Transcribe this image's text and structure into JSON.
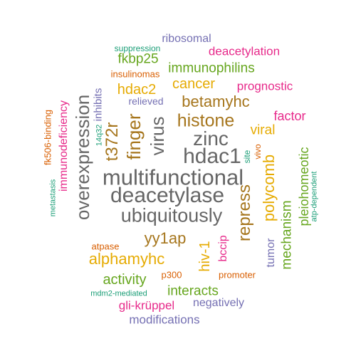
{
  "palette": {
    "green": "#1b9e77",
    "orange": "#d95f02",
    "purple": "#7570b3",
    "magenta": "#e7298a",
    "lime": "#66a61e",
    "gold": "#e6ab02",
    "brown": "#a6761d",
    "gray": "#666666"
  },
  "words": [
    {
      "text": "multifunctional",
      "color": "#666666"
    },
    {
      "text": "deacetylase",
      "color": "#666666"
    },
    {
      "text": "ubiquitously",
      "color": "#666666"
    },
    {
      "text": "overexpression",
      "color": "#666666"
    },
    {
      "text": "hdac1",
      "color": "#666666"
    },
    {
      "text": "zinc",
      "color": "#666666"
    },
    {
      "text": "virus",
      "color": "#666666"
    },
    {
      "text": "histone",
      "color": "#a6761d"
    },
    {
      "text": "finger",
      "color": "#a6761d"
    },
    {
      "text": "t372r",
      "color": "#a6761d"
    },
    {
      "text": "repress",
      "color": "#a6761d"
    },
    {
      "text": "yy1ap",
      "color": "#a6761d"
    },
    {
      "text": "betamyhc",
      "color": "#a6761d"
    },
    {
      "text": "polycomb",
      "color": "#e6ab02"
    },
    {
      "text": "alphamyhc",
      "color": "#e6ab02"
    },
    {
      "text": "cancer",
      "color": "#e6ab02"
    },
    {
      "text": "hdac2",
      "color": "#e6ab02"
    },
    {
      "text": "viral",
      "color": "#e6ab02"
    },
    {
      "text": "hiv-1",
      "color": "#e6ab02"
    },
    {
      "text": "immunophilins",
      "color": "#66a61e"
    },
    {
      "text": "fkbp25",
      "color": "#66a61e"
    },
    {
      "text": "activity",
      "color": "#66a61e"
    },
    {
      "text": "interacts",
      "color": "#66a61e"
    },
    {
      "text": "mechanism",
      "color": "#66a61e"
    },
    {
      "text": "pleiohomeotic",
      "color": "#66a61e"
    },
    {
      "text": "deacetylation",
      "color": "#e7298a"
    },
    {
      "text": "prognostic",
      "color": "#e7298a"
    },
    {
      "text": "factor",
      "color": "#e7298a"
    },
    {
      "text": "immunodeficiency",
      "color": "#e7298a"
    },
    {
      "text": "gli-krüppel",
      "color": "#e7298a"
    },
    {
      "text": "bccip",
      "color": "#e7298a"
    },
    {
      "text": "ribosomal",
      "color": "#7570b3"
    },
    {
      "text": "inhibits",
      "color": "#7570b3"
    },
    {
      "text": "relieved",
      "color": "#7570b3"
    },
    {
      "text": "tumor",
      "color": "#7570b3"
    },
    {
      "text": "negatively",
      "color": "#7570b3"
    },
    {
      "text": "modifications",
      "color": "#7570b3"
    },
    {
      "text": "insulinomas",
      "color": "#d95f02"
    },
    {
      "text": "fk506-binding",
      "color": "#d95f02"
    },
    {
      "text": "atpase",
      "color": "#d95f02"
    },
    {
      "text": "p300",
      "color": "#d95f02"
    },
    {
      "text": "promoter",
      "color": "#d95f02"
    },
    {
      "text": "vivo",
      "color": "#d95f02"
    },
    {
      "text": "suppression",
      "color": "#1b9e77"
    },
    {
      "text": "14q32",
      "color": "#1b9e77"
    },
    {
      "text": "metastasis",
      "color": "#1b9e77"
    },
    {
      "text": "site",
      "color": "#1b9e77"
    },
    {
      "text": "atp-dependent",
      "color": "#1b9e77"
    },
    {
      "text": "mdm2-mediated",
      "color": "#1b9e77"
    }
  ]
}
